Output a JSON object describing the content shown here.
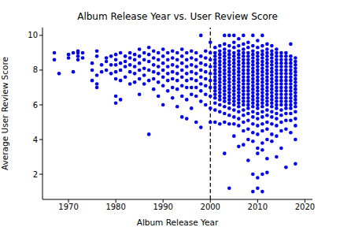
{
  "chart_data": {
    "type": "scatter",
    "title": "Album Release Year vs. User Review Score",
    "xlabel": "Album Release Year",
    "ylabel": "Average User Review Score",
    "color": "#0000ff",
    "marker": "circle",
    "xlim": [
      1964.5,
      2021.6
    ],
    "xticks": [
      1970,
      1980,
      1990,
      2000,
      2010,
      2020
    ],
    "ylim": [
      0.55,
      10.45
    ],
    "yticks": [
      2,
      4,
      6,
      8,
      10
    ],
    "grid": false,
    "vline": {
      "x": 2000,
      "color": "#000000",
      "line_style": "dashed"
    },
    "x": [
      1967,
      1967,
      1968,
      1970,
      1970,
      1971,
      1971,
      1972,
      1972,
      1972,
      1972,
      1973,
      1973,
      1975,
      1975,
      1975,
      1976,
      1976,
      1976,
      1976,
      1976,
      1977,
      1977,
      1978,
      1978,
      1978,
      1979,
      1979,
      1979,
      1980,
      1980,
      1980,
      1980,
      1980,
      1980,
      1980,
      1981,
      1981,
      1981,
      1981,
      1981,
      1982,
      1982,
      1982,
      1982,
      1983,
      1983,
      1983,
      1983,
      1983,
      1984,
      1984,
      1984,
      1984,
      1984,
      1985,
      1985,
      1985,
      1985,
      1985,
      1985,
      1986,
      1986,
      1986,
      1986,
      1986,
      1987,
      1987,
      1987,
      1987,
      1987,
      1987,
      1988,
      1988,
      1988,
      1988,
      1988,
      1988,
      1989,
      1989,
      1989,
      1989,
      1989,
      1989,
      1990,
      1990,
      1990,
      1990,
      1990,
      1990,
      1990,
      1991,
      1991,
      1991,
      1991,
      1991,
      1991,
      1992,
      1992,
      1992,
      1992,
      1992,
      1992,
      1992,
      1993,
      1993,
      1993,
      1993,
      1993,
      1993,
      1993,
      1994,
      1994,
      1994,
      1994,
      1994,
      1994,
      1994,
      1994,
      1995,
      1995,
      1995,
      1995,
      1995,
      1995,
      1995,
      1995,
      1996,
      1996,
      1996,
      1996,
      1996,
      1996,
      1996,
      1996,
      1997,
      1997,
      1997,
      1997,
      1997,
      1997,
      1997,
      1997,
      1998,
      1998,
      1998,
      1998,
      1998,
      1998,
      1998,
      1998,
      1998,
      1999,
      1999,
      1999,
      1999,
      1999,
      1999,
      1999,
      1999,
      2000,
      2000,
      2000,
      2000,
      2000,
      2000,
      2000,
      2000,
      2000,
      2000,
      2001,
      2001,
      2001,
      2001,
      2001,
      2001,
      2001,
      2001,
      2001,
      2001,
      2001,
      2001,
      2001,
      2001,
      2001,
      2001,
      2001,
      2001,
      2002,
      2002,
      2002,
      2002,
      2002,
      2002,
      2002,
      2002,
      2002,
      2002,
      2002,
      2002,
      2002,
      2002,
      2002,
      2002,
      2002,
      2002,
      2002,
      2003,
      2003,
      2003,
      2003,
      2003,
      2003,
      2003,
      2003,
      2003,
      2003,
      2003,
      2003,
      2003,
      2003,
      2003,
      2003,
      2003,
      2003,
      2003,
      2003,
      2003,
      2003,
      2004,
      2004,
      2004,
      2004,
      2004,
      2004,
      2004,
      2004,
      2004,
      2004,
      2004,
      2004,
      2004,
      2004,
      2004,
      2004,
      2004,
      2004,
      2004,
      2004,
      2004,
      2004,
      2005,
      2005,
      2005,
      2005,
      2005,
      2005,
      2005,
      2005,
      2005,
      2005,
      2005,
      2005,
      2005,
      2005,
      2005,
      2005,
      2005,
      2005,
      2005,
      2005,
      2005,
      2005,
      2005,
      2006,
      2006,
      2006,
      2006,
      2006,
      2006,
      2006,
      2006,
      2006,
      2006,
      2006,
      2006,
      2006,
      2006,
      2006,
      2006,
      2006,
      2006,
      2006,
      2006,
      2006,
      2006,
      2006,
      2007,
      2007,
      2007,
      2007,
      2007,
      2007,
      2007,
      2007,
      2007,
      2007,
      2007,
      2007,
      2007,
      2007,
      2007,
      2007,
      2007,
      2007,
      2007,
      2007,
      2007,
      2007,
      2007,
      2007,
      2008,
      2008,
      2008,
      2008,
      2008,
      2008,
      2008,
      2008,
      2008,
      2008,
      2008,
      2008,
      2008,
      2008,
      2008,
      2008,
      2008,
      2008,
      2008,
      2008,
      2008,
      2008,
      2008,
      2008,
      2009,
      2009,
      2009,
      2009,
      2009,
      2009,
      2009,
      2009,
      2009,
      2009,
      2009,
      2009,
      2009,
      2009,
      2009,
      2009,
      2009,
      2009,
      2009,
      2009,
      2009,
      2009,
      2009,
      2009,
      2009,
      2009,
      2010,
      2010,
      2010,
      2010,
      2010,
      2010,
      2010,
      2010,
      2010,
      2010,
      2010,
      2010,
      2010,
      2010,
      2010,
      2010,
      2010,
      2010,
      2010,
      2010,
      2010,
      2010,
      2010,
      2010,
      2010,
      2010,
      2010,
      2011,
      2011,
      2011,
      2011,
      2011,
      2011,
      2011,
      2011,
      2011,
      2011,
      2011,
      2011,
      2011,
      2011,
      2011,
      2011,
      2011,
      2011,
      2011,
      2011,
      2011,
      2011,
      2011,
      2011,
      2011,
      2011,
      2011,
      2012,
      2012,
      2012,
      2012,
      2012,
      2012,
      2012,
      2012,
      2012,
      2012,
      2012,
      2012,
      2012,
      2012,
      2012,
      2012,
      2012,
      2012,
      2012,
      2012,
      2012,
      2012,
      2012,
      2012,
      2012,
      2013,
      2013,
      2013,
      2013,
      2013,
      2013,
      2013,
      2013,
      2013,
      2013,
      2013,
      2013,
      2013,
      2013,
      2013,
      2013,
      2013,
      2013,
      2013,
      2013,
      2013,
      2013,
      2013,
      2014,
      2014,
      2014,
      2014,
      2014,
      2014,
      2014,
      2014,
      2014,
      2014,
      2014,
      2014,
      2014,
      2014,
      2014,
      2014,
      2014,
      2014,
      2014,
      2014,
      2014,
      2014,
      2014,
      2015,
      2015,
      2015,
      2015,
      2015,
      2015,
      2015,
      2015,
      2015,
      2015,
      2015,
      2015,
      2015,
      2015,
      2015,
      2015,
      2015,
      2015,
      2015,
      2015,
      2015,
      2016,
      2016,
      2016,
      2016,
      2016,
      2016,
      2016,
      2016,
      2016,
      2016,
      2016,
      2016,
      2016,
      2016,
      2016,
      2016,
      2016,
      2016,
      2016,
      2016,
      2016,
      2017,
      2017,
      2017,
      2017,
      2017,
      2017,
      2017,
      2017,
      2017,
      2017,
      2017,
      2017,
      2017,
      2017,
      2017,
      2017,
      2017,
      2017,
      2017,
      2017,
      2018,
      2018,
      2018,
      2018,
      2018,
      2018,
      2018,
      2018,
      2018,
      2018,
      2018,
      2018,
      2018,
      2018,
      2018,
      2018,
      2018,
      2018,
      2018,
      2018
    ],
    "values": [
      9.0,
      8.6,
      7.8,
      8.9,
      8.7,
      7.9,
      9.0,
      9.1,
      8.8,
      8.6,
      9.0,
      9.0,
      8.7,
      8.4,
      8.0,
      7.4,
      9.1,
      8.8,
      7.7,
      7.2,
      7.0,
      8.3,
      7.9,
      8.7,
      8.5,
      8.0,
      8.8,
      8.3,
      7.8,
      8.9,
      8.6,
      8.3,
      7.9,
      7.5,
      6.5,
      6.1,
      9.0,
      8.4,
      8.0,
      7.4,
      6.3,
      8.8,
      8.5,
      8.2,
      7.6,
      9.0,
      8.7,
      8.3,
      7.9,
      7.2,
      8.9,
      8.6,
      8.2,
      7.8,
      7.3,
      9.2,
      8.8,
      8.4,
      8.0,
      7.5,
      6.6,
      9.0,
      8.6,
      8.1,
      7.7,
      7.2,
      9.3,
      8.9,
      8.5,
      8.0,
      7.4,
      4.3,
      9.1,
      8.7,
      8.3,
      7.9,
      7.5,
      6.9,
      9.0,
      8.6,
      8.2,
      7.8,
      7.3,
      6.5,
      9.2,
      8.8,
      8.4,
      8.0,
      7.6,
      7.1,
      6.0,
      9.0,
      8.6,
      8.2,
      7.8,
      7.4,
      6.8,
      9.1,
      8.7,
      8.3,
      7.9,
      7.5,
      7.0,
      6.4,
      9.0,
      8.6,
      8.2,
      7.8,
      7.4,
      6.9,
      5.9,
      9.2,
      8.8,
      8.4,
      8.0,
      7.6,
      7.1,
      6.5,
      5.3,
      9.0,
      8.6,
      8.2,
      7.8,
      7.4,
      7.0,
      6.3,
      5.2,
      9.1,
      8.7,
      8.3,
      7.9,
      7.5,
      7.0,
      6.6,
      5.8,
      9.0,
      8.6,
      8.2,
      7.8,
      7.4,
      7.0,
      6.5,
      5.0,
      10.0,
      8.8,
      8.4,
      8.0,
      7.6,
      7.2,
      6.8,
      6.2,
      4.7,
      9.1,
      8.7,
      8.3,
      7.9,
      7.5,
      7.1,
      6.6,
      6.0,
      9.6,
      9.0,
      8.6,
      8.2,
      7.8,
      7.4,
      7.0,
      6.5,
      5.8,
      5.0,
      9.3,
      9.0,
      8.8,
      8.6,
      8.4,
      8.2,
      8.0,
      7.8,
      7.6,
      7.4,
      7.2,
      7.0,
      6.8,
      6.6,
      6.4,
      6.1,
      5.7,
      5.0,
      9.4,
      9.1,
      8.9,
      8.7,
      8.5,
      8.3,
      8.1,
      7.9,
      7.7,
      7.5,
      7.3,
      7.1,
      6.9,
      6.7,
      6.5,
      6.3,
      6.0,
      5.6,
      4.9,
      10.0,
      9.5,
      9.2,
      9.0,
      8.8,
      8.6,
      8.4,
      8.2,
      8.0,
      7.8,
      7.6,
      7.4,
      7.2,
      7.0,
      6.8,
      6.6,
      6.4,
      6.2,
      5.9,
      5.5,
      5.0,
      3.2,
      10.0,
      9.4,
      9.1,
      8.9,
      8.7,
      8.5,
      8.3,
      8.1,
      7.9,
      7.7,
      7.5,
      7.3,
      7.1,
      6.9,
      6.7,
      6.5,
      6.3,
      6.1,
      5.8,
      5.4,
      4.9,
      1.2,
      10.0,
      9.6,
      9.3,
      9.0,
      8.8,
      8.6,
      8.4,
      8.2,
      8.0,
      7.8,
      7.6,
      7.4,
      7.2,
      7.0,
      6.8,
      6.6,
      6.4,
      6.2,
      6.0,
      5.7,
      5.3,
      4.9,
      4.2,
      9.8,
      9.4,
      9.1,
      8.9,
      8.7,
      8.5,
      8.3,
      8.1,
      7.9,
      7.7,
      7.5,
      7.3,
      7.1,
      6.9,
      6.7,
      6.5,
      6.3,
      6.1,
      5.9,
      5.6,
      5.2,
      4.8,
      3.6,
      10.0,
      9.5,
      9.2,
      9.0,
      8.8,
      8.6,
      8.4,
      8.2,
      8.0,
      7.8,
      7.6,
      7.4,
      7.2,
      7.0,
      6.8,
      6.6,
      6.4,
      6.2,
      6.0,
      5.7,
      5.4,
      5.0,
      4.5,
      3.7,
      9.6,
      9.3,
      9.0,
      8.8,
      8.6,
      8.4,
      8.2,
      8.0,
      7.8,
      7.6,
      7.4,
      7.2,
      7.0,
      6.8,
      6.6,
      6.4,
      6.2,
      6.0,
      5.8,
      5.5,
      5.1,
      4.6,
      4.0,
      2.8,
      10.0,
      9.4,
      9.1,
      8.9,
      8.7,
      8.5,
      8.3,
      8.1,
      7.9,
      7.7,
      7.5,
      7.3,
      7.1,
      6.9,
      6.7,
      6.5,
      6.3,
      6.1,
      5.9,
      5.6,
      5.3,
      4.9,
      4.4,
      3.9,
      2.0,
      1.0,
      9.7,
      9.3,
      9.0,
      8.8,
      8.6,
      8.4,
      8.2,
      8.0,
      7.8,
      7.6,
      7.4,
      7.2,
      7.0,
      6.8,
      6.6,
      6.4,
      6.2,
      6.0,
      5.8,
      5.5,
      5.2,
      4.8,
      4.3,
      3.5,
      3.2,
      1.8,
      1.2,
      10.0,
      9.4,
      9.1,
      8.9,
      8.7,
      8.5,
      8.3,
      8.1,
      7.9,
      7.7,
      7.5,
      7.3,
      7.1,
      6.9,
      6.7,
      6.5,
      6.3,
      6.1,
      5.9,
      5.6,
      5.3,
      4.9,
      4.5,
      3.8,
      3.4,
      2.0,
      1.0,
      9.5,
      9.2,
      9.0,
      8.8,
      8.6,
      8.4,
      8.2,
      8.0,
      7.8,
      7.6,
      7.4,
      7.2,
      7.0,
      6.8,
      6.6,
      6.4,
      6.2,
      6.0,
      5.7,
      5.4,
      5.0,
      4.6,
      4.0,
      2.9,
      2.1,
      9.4,
      9.1,
      8.9,
      8.7,
      8.5,
      8.3,
      8.1,
      7.9,
      7.7,
      7.5,
      7.3,
      7.1,
      6.9,
      6.7,
      6.5,
      6.3,
      6.1,
      5.9,
      5.6,
      5.3,
      4.9,
      4.3,
      3.9,
      9.2,
      9.0,
      8.8,
      8.6,
      8.4,
      8.2,
      8.0,
      7.8,
      7.6,
      7.4,
      7.2,
      7.0,
      6.8,
      6.6,
      6.4,
      6.2,
      6.0,
      5.8,
      5.5,
      5.2,
      4.8,
      4.2,
      3.0,
      9.0,
      8.8,
      8.6,
      8.4,
      8.2,
      8.0,
      7.8,
      7.6,
      7.4,
      7.2,
      7.0,
      6.8,
      6.6,
      6.4,
      6.2,
      6.0,
      5.7,
      5.4,
      5.0,
      4.5,
      3.5,
      9.0,
      8.8,
      8.6,
      8.4,
      8.2,
      8.0,
      7.8,
      7.6,
      7.4,
      7.2,
      7.0,
      6.8,
      6.6,
      6.4,
      6.2,
      6.0,
      5.8,
      5.5,
      5.1,
      4.6,
      2.4,
      9.5,
      8.8,
      8.6,
      8.4,
      8.2,
      8.0,
      7.8,
      7.6,
      7.4,
      7.2,
      7.0,
      6.8,
      6.6,
      6.4,
      6.2,
      6.0,
      5.8,
      5.5,
      5.1,
      4.4,
      8.7,
      8.5,
      8.3,
      8.1,
      7.9,
      7.7,
      7.5,
      7.3,
      7.1,
      6.9,
      6.7,
      6.5,
      6.3,
      6.1,
      5.9,
      5.6,
      5.2,
      4.8,
      4.0,
      2.6
    ]
  }
}
